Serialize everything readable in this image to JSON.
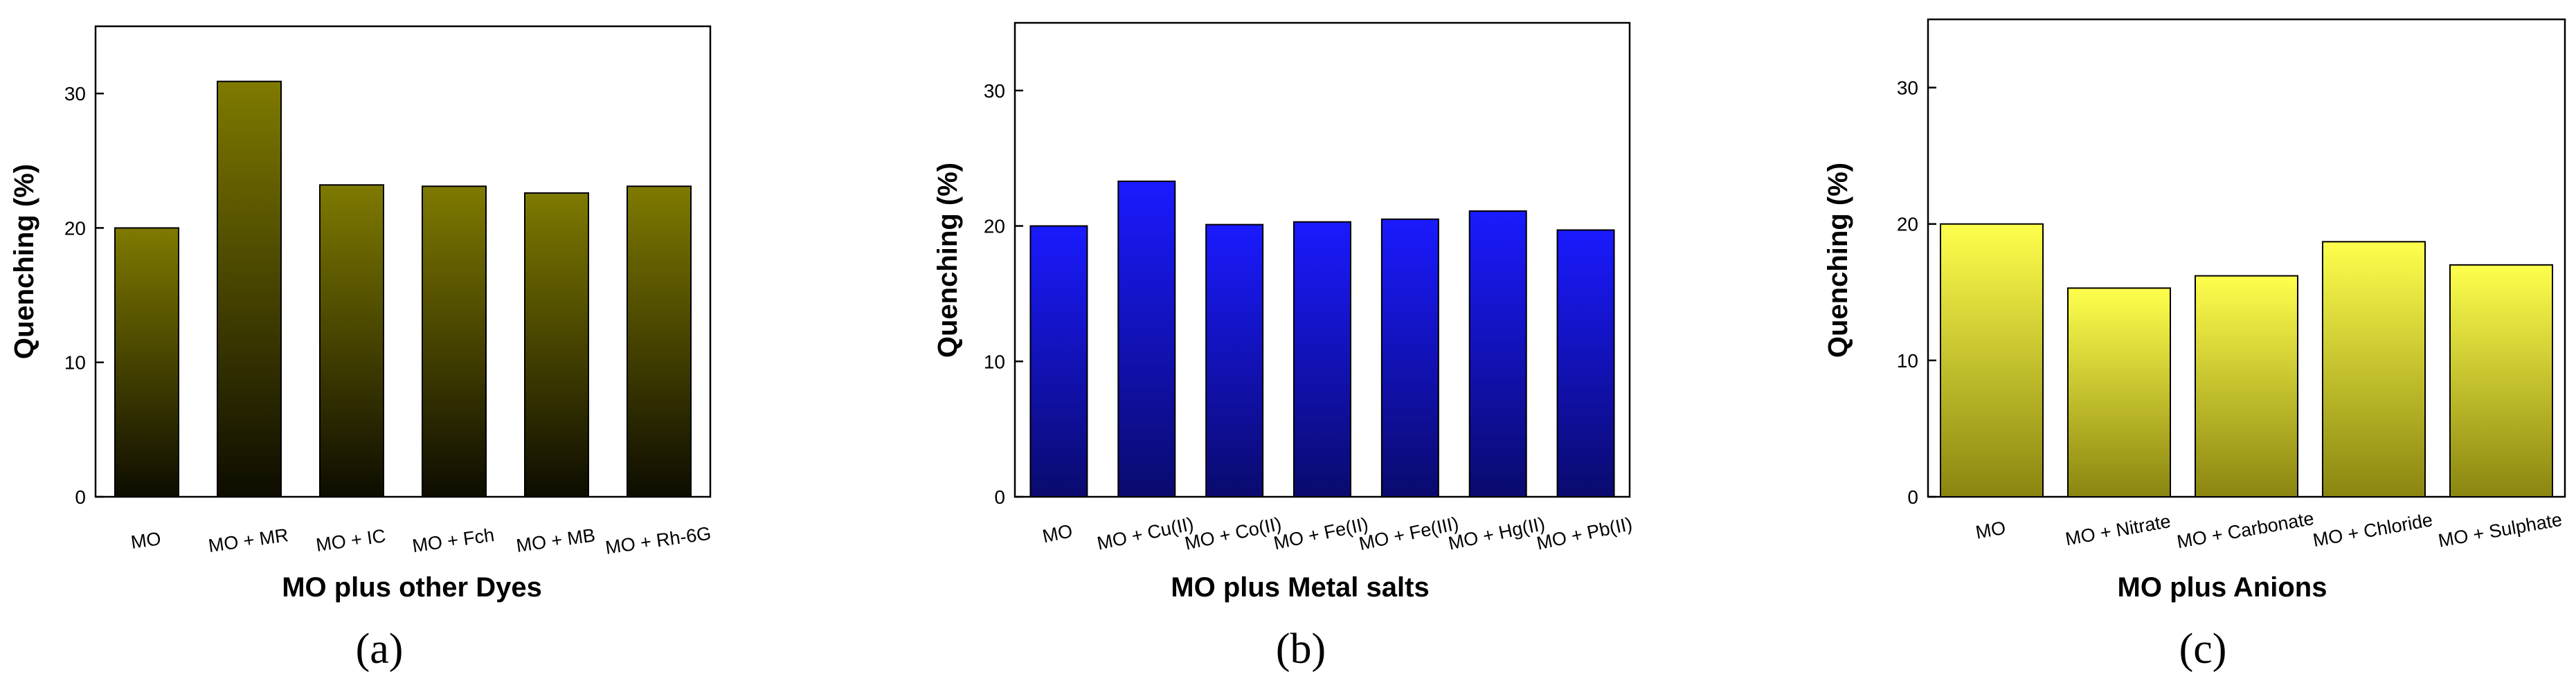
{
  "figure": {
    "panel_labels": [
      "(a)",
      "(b)",
      "(c)"
    ]
  },
  "colors": {
    "panel_a_top": "#7f7a00",
    "panel_a_bottom": "#0d0c00",
    "panel_b_top": "#1a1aff",
    "panel_b_bottom": "#0a0a6e",
    "panel_c_top": "#ffff4d",
    "panel_c_bottom": "#8a8510"
  },
  "chart_data": [
    {
      "type": "bar",
      "title": "",
      "xlabel": "MO plus other Dyes",
      "ylabel": "Quenching (%)",
      "ylim": [
        0,
        35
      ],
      "yticks": [
        0,
        10,
        20,
        30
      ],
      "categories": [
        "MO",
        "MO + MR",
        "MO + IC",
        "MO + Fch",
        "MO + MB",
        "MO + Rh-6G"
      ],
      "values": [
        20.0,
        30.9,
        23.2,
        23.1,
        22.6,
        23.1
      ],
      "panel_label": "(a)"
    },
    {
      "type": "bar",
      "title": "",
      "xlabel": "MO plus Metal salts",
      "ylabel": "Quenching (%)",
      "ylim": [
        0,
        35
      ],
      "yticks": [
        0,
        10,
        20,
        30
      ],
      "categories": [
        "MO",
        "MO + Cu(II)",
        "MO + Co(II)",
        "MO + Fe(II)",
        "MO + Fe(III)",
        "MO + Hg(II)",
        "MO + Pb(II)"
      ],
      "values": [
        20.0,
        23.3,
        20.1,
        20.3,
        20.5,
        21.1,
        19.7
      ],
      "panel_label": "(b)"
    },
    {
      "type": "bar",
      "title": "",
      "xlabel": "MO plus Anions",
      "ylabel": "Quenching (%)",
      "ylim": [
        0,
        35
      ],
      "yticks": [
        0,
        10,
        20,
        30
      ],
      "categories": [
        "MO",
        "MO + Nitrate",
        "MO + Carbonate",
        "MO + Chloride",
        "MO + Sulphate"
      ],
      "values": [
        20.0,
        15.3,
        16.2,
        18.7,
        17.0
      ],
      "panel_label": "(c)"
    }
  ]
}
